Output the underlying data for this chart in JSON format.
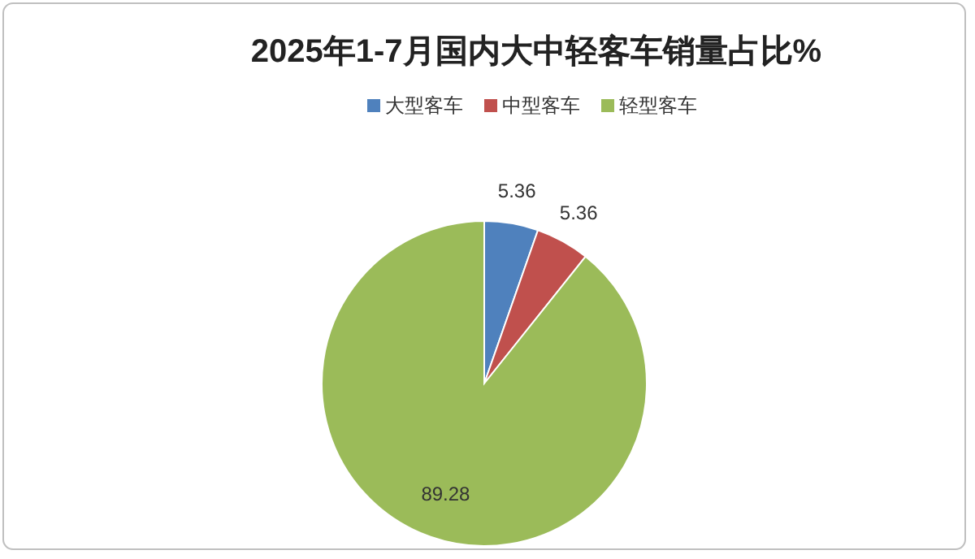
{
  "chart_data": {
    "type": "pie",
    "title": "2025年1-7月国内大中轻客车销量占比%",
    "categories": [
      "大型客车",
      "中型客车",
      "轻型客车"
    ],
    "values": [
      5.36,
      5.36,
      89.28
    ],
    "colors": [
      "#4f81bd",
      "#c0504d",
      "#9bbb59"
    ],
    "legend": "top",
    "data_labels": true
  }
}
